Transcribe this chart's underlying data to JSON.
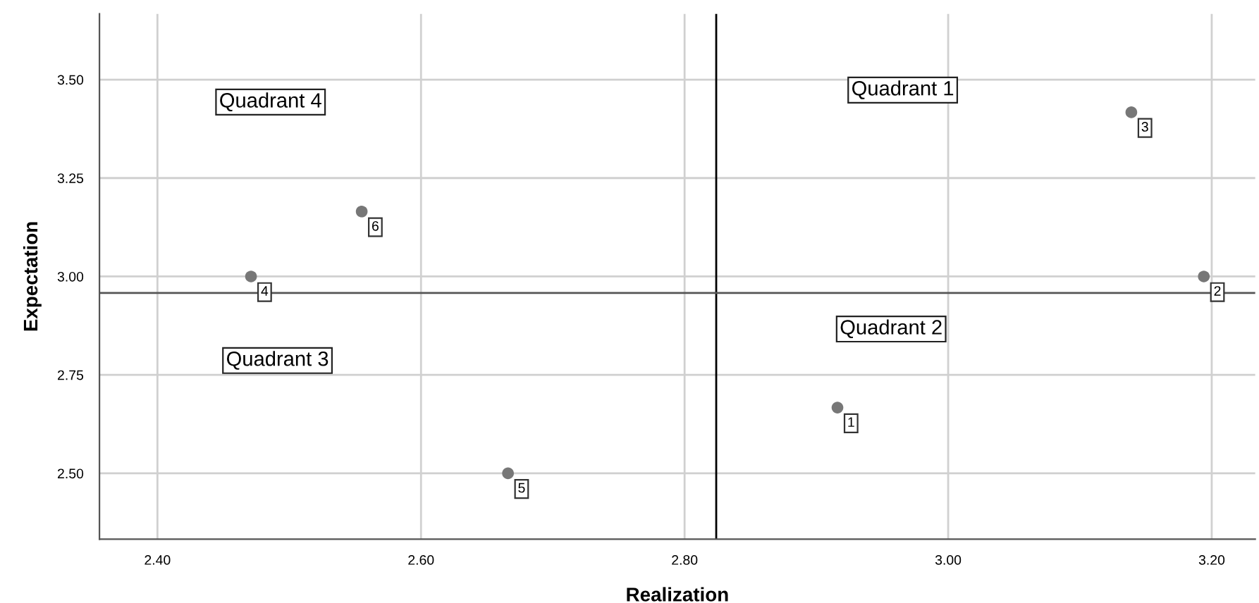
{
  "chart_data": {
    "type": "scatter",
    "xlabel": "Realization",
    "ylabel": "Expectation",
    "x": [
      2.916,
      3.194,
      3.139,
      2.471,
      2.666,
      2.555
    ],
    "values": [
      2.667,
      3.0,
      3.417,
      3.0,
      2.5,
      3.165
    ],
    "color": "#777777",
    "marker": "circle",
    "xlim": [
      2.356,
      3.233
    ],
    "xticks": [
      {
        "value": 2.4,
        "label": "2.40"
      },
      {
        "value": 2.6,
        "label": "2.60"
      },
      {
        "value": 2.8,
        "label": "2.80"
      },
      {
        "value": 3.0,
        "label": "3.00"
      },
      {
        "value": 3.2,
        "label": "3.20"
      }
    ],
    "ylim": [
      2.333,
      3.667
    ],
    "yticks": [
      {
        "value": 2.5,
        "label": "2.50"
      },
      {
        "value": 2.75,
        "label": "2.75"
      },
      {
        "value": 3.0,
        "label": "3.00"
      },
      {
        "value": 3.25,
        "label": "3.25"
      },
      {
        "value": 3.5,
        "label": "3.50"
      }
    ],
    "grid": true,
    "ref_lines": [
      {
        "axis": "x",
        "value": 2.824,
        "color": "#000000"
      },
      {
        "axis": "y",
        "value": 2.958,
        "color": "#555555"
      }
    ],
    "annotations": [
      "Quadrant 1",
      "Quadrant 2",
      "Quadrant 3",
      "Quadrant 4",
      {
        "text": "1",
        "x": 2.916,
        "y": 2.667
      },
      {
        "text": "2",
        "x": 3.194,
        "y": 3.0
      },
      {
        "text": "3",
        "x": 3.139,
        "y": 3.417
      },
      {
        "text": "4",
        "x": 2.471,
        "y": 3.0
      },
      {
        "text": "5",
        "x": 2.666,
        "y": 2.5
      },
      {
        "text": "6",
        "x": 2.555,
        "y": 3.165
      }
    ]
  }
}
